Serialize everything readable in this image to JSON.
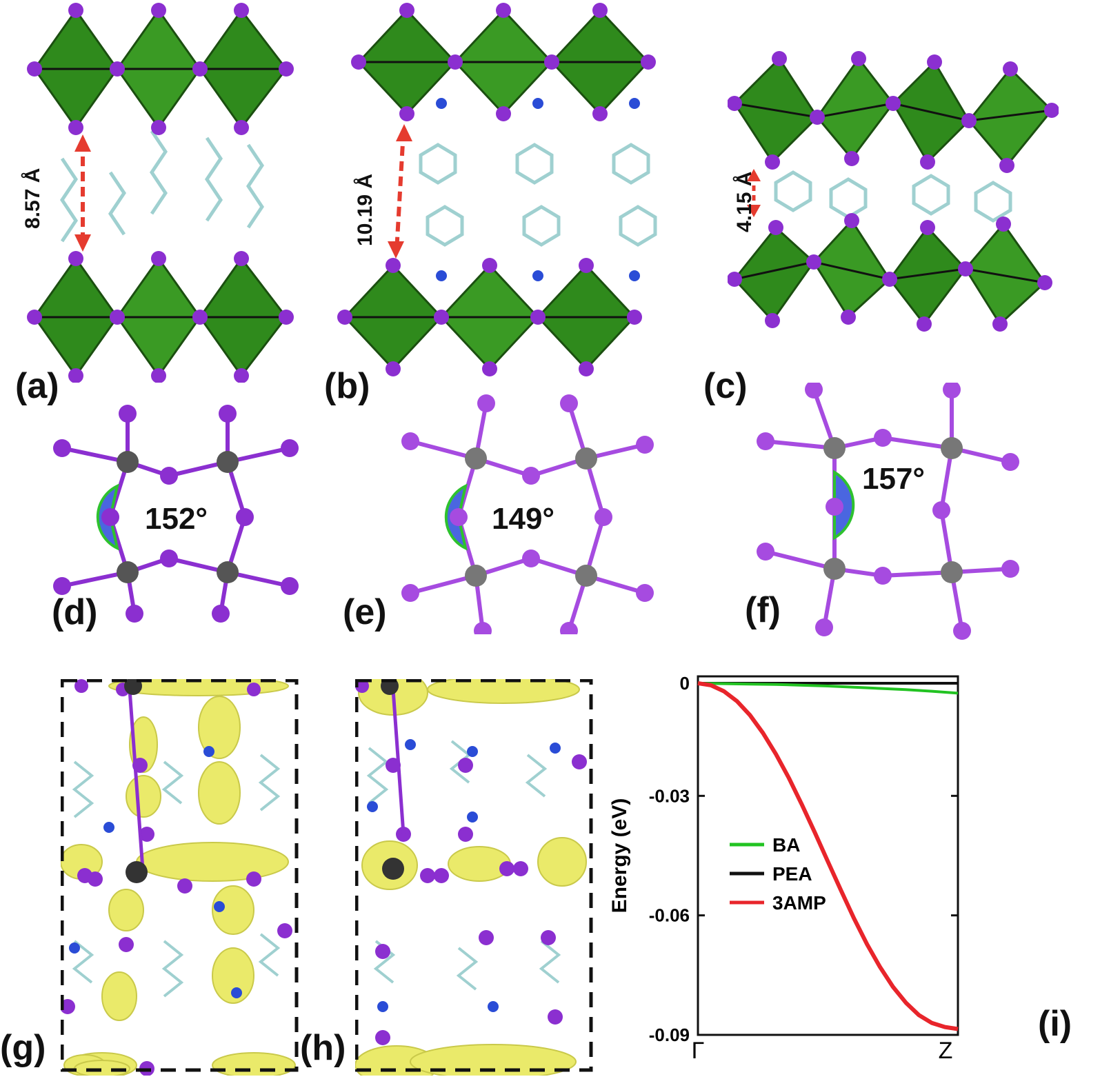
{
  "panels": {
    "a": {
      "label": "(a)",
      "distance": "8.57 Å"
    },
    "b": {
      "label": "(b)",
      "distance": "10.19 Å"
    },
    "c": {
      "label": "(c)",
      "distance": "4.15 Å"
    },
    "d": {
      "label": "(d)",
      "angle": "152°"
    },
    "e": {
      "label": "(e)",
      "angle": "149°"
    },
    "f": {
      "label": "(f)",
      "angle": "157°"
    },
    "g": {
      "label": "(g)"
    },
    "h": {
      "label": "(h)"
    },
    "i": {
      "label": "(i)"
    }
  },
  "colors": {
    "octahedron": "#2f8a1c",
    "iodine": "#8b2fd0",
    "lead": "#555555",
    "carbon": "#9fd0d0",
    "nitrogen": "#2a4cd6",
    "arrow": "#e53b2f",
    "isosurface": "#eaea6a",
    "angle_fill": "#4a66e0"
  },
  "chart_data": {
    "type": "line",
    "xlabel": "",
    "ylabel": "Energy (eV)",
    "x_ticks": [
      "Γ",
      "Z"
    ],
    "ylim": [
      -0.09,
      0.0
    ],
    "y_ticks": [
      "0",
      "-0.03",
      "-0.06",
      "-0.09"
    ],
    "y_tick_values": [
      0,
      -0.03,
      -0.06,
      -0.09
    ],
    "legend_position": "center-left",
    "series": [
      {
        "name": "BA",
        "color": "#22c322",
        "x": [
          0,
          0.1,
          0.2,
          0.3,
          0.4,
          0.5,
          0.6,
          0.7,
          0.8,
          0.9,
          1.0
        ],
        "y": [
          0,
          -0.0001,
          -0.0002,
          -0.0003,
          -0.0005,
          -0.0007,
          -0.001,
          -0.0013,
          -0.0016,
          -0.002,
          -0.0025
        ]
      },
      {
        "name": "PEA",
        "color": "#111111",
        "x": [
          0,
          0.1,
          0.2,
          0.3,
          0.4,
          0.5,
          0.6,
          0.7,
          0.8,
          0.9,
          1.0
        ],
        "y": [
          0,
          0,
          0,
          0,
          0,
          0,
          0,
          0,
          0,
          0,
          0
        ]
      },
      {
        "name": "3AMP",
        "color": "#e8252b",
        "x": [
          0,
          0.05,
          0.1,
          0.15,
          0.2,
          0.25,
          0.3,
          0.35,
          0.4,
          0.45,
          0.5,
          0.55,
          0.6,
          0.65,
          0.7,
          0.75,
          0.8,
          0.85,
          0.9,
          0.95,
          1.0
        ],
        "y": [
          0,
          -0.0005,
          -0.002,
          -0.0045,
          -0.008,
          -0.0125,
          -0.0178,
          -0.0238,
          -0.0305,
          -0.0375,
          -0.0448,
          -0.052,
          -0.059,
          -0.0655,
          -0.0712,
          -0.0762,
          -0.0802,
          -0.0833,
          -0.0853,
          -0.0863,
          -0.0868
        ]
      }
    ]
  }
}
